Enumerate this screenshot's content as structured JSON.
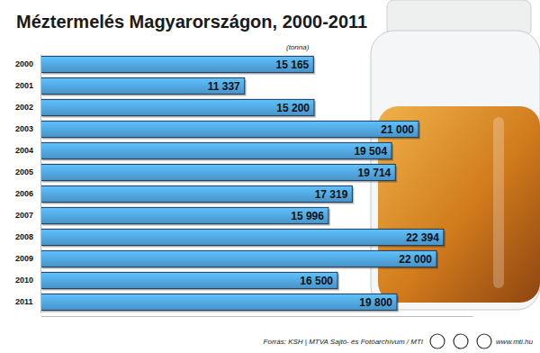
{
  "chart_data": {
    "type": "bar",
    "orientation": "horizontal",
    "title": "Méztermelés Magyarországon, 2000-2011",
    "subtitle": "(tonna)",
    "annotations": [
      "Forrás: KSH | MTVA Sajtó- és Fotóarchívum / MTI",
      "www.mti.hu"
    ],
    "categories": [
      "2000",
      "2001",
      "2002",
      "2003",
      "2004",
      "2005",
      "2006",
      "2007",
      "2008",
      "2009",
      "2010",
      "2011"
    ],
    "values": [
      15165,
      11337,
      15200,
      21000,
      19504,
      19714,
      17319,
      15996,
      22394,
      22000,
      16500,
      19800
    ],
    "value_labels": [
      "15 165",
      "11 337",
      "15 200",
      "21 000",
      "19 504",
      "19 714",
      "17 319",
      "15 996",
      "22 394",
      "22 000",
      "16 500",
      "19 800"
    ],
    "color": "#4fa3dd",
    "xlim": [
      0,
      24000
    ],
    "data_labels": true,
    "tick_labels": "y",
    "grid": false
  }
}
